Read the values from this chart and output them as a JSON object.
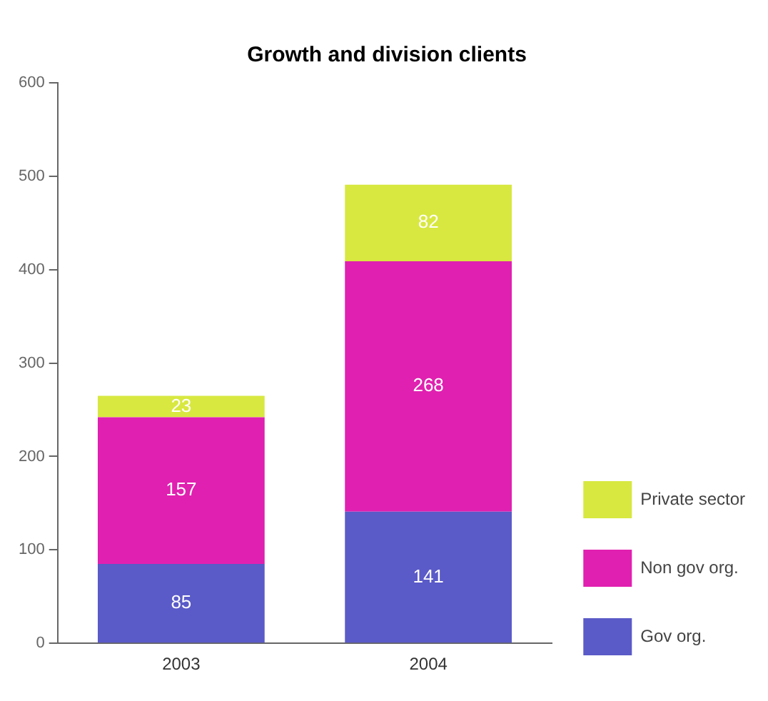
{
  "chart_data": {
    "type": "bar",
    "title": "Growth and division clients",
    "categories": [
      "2003",
      "2004"
    ],
    "stacked": true,
    "series": [
      {
        "name": "Gov org.",
        "color": "#5a5ac8",
        "values": [
          85,
          141
        ]
      },
      {
        "name": "Non gov org.",
        "color": "#e020b0",
        "values": [
          157,
          268
        ]
      },
      {
        "name": "Private sector",
        "color": "#d8e840",
        "values": [
          23,
          82
        ]
      }
    ],
    "ylim": [
      0,
      600
    ],
    "yticks": [
      0,
      100,
      200,
      300,
      400,
      500,
      600
    ],
    "grid": false,
    "legend": "bottom right",
    "data_labels": true
  }
}
